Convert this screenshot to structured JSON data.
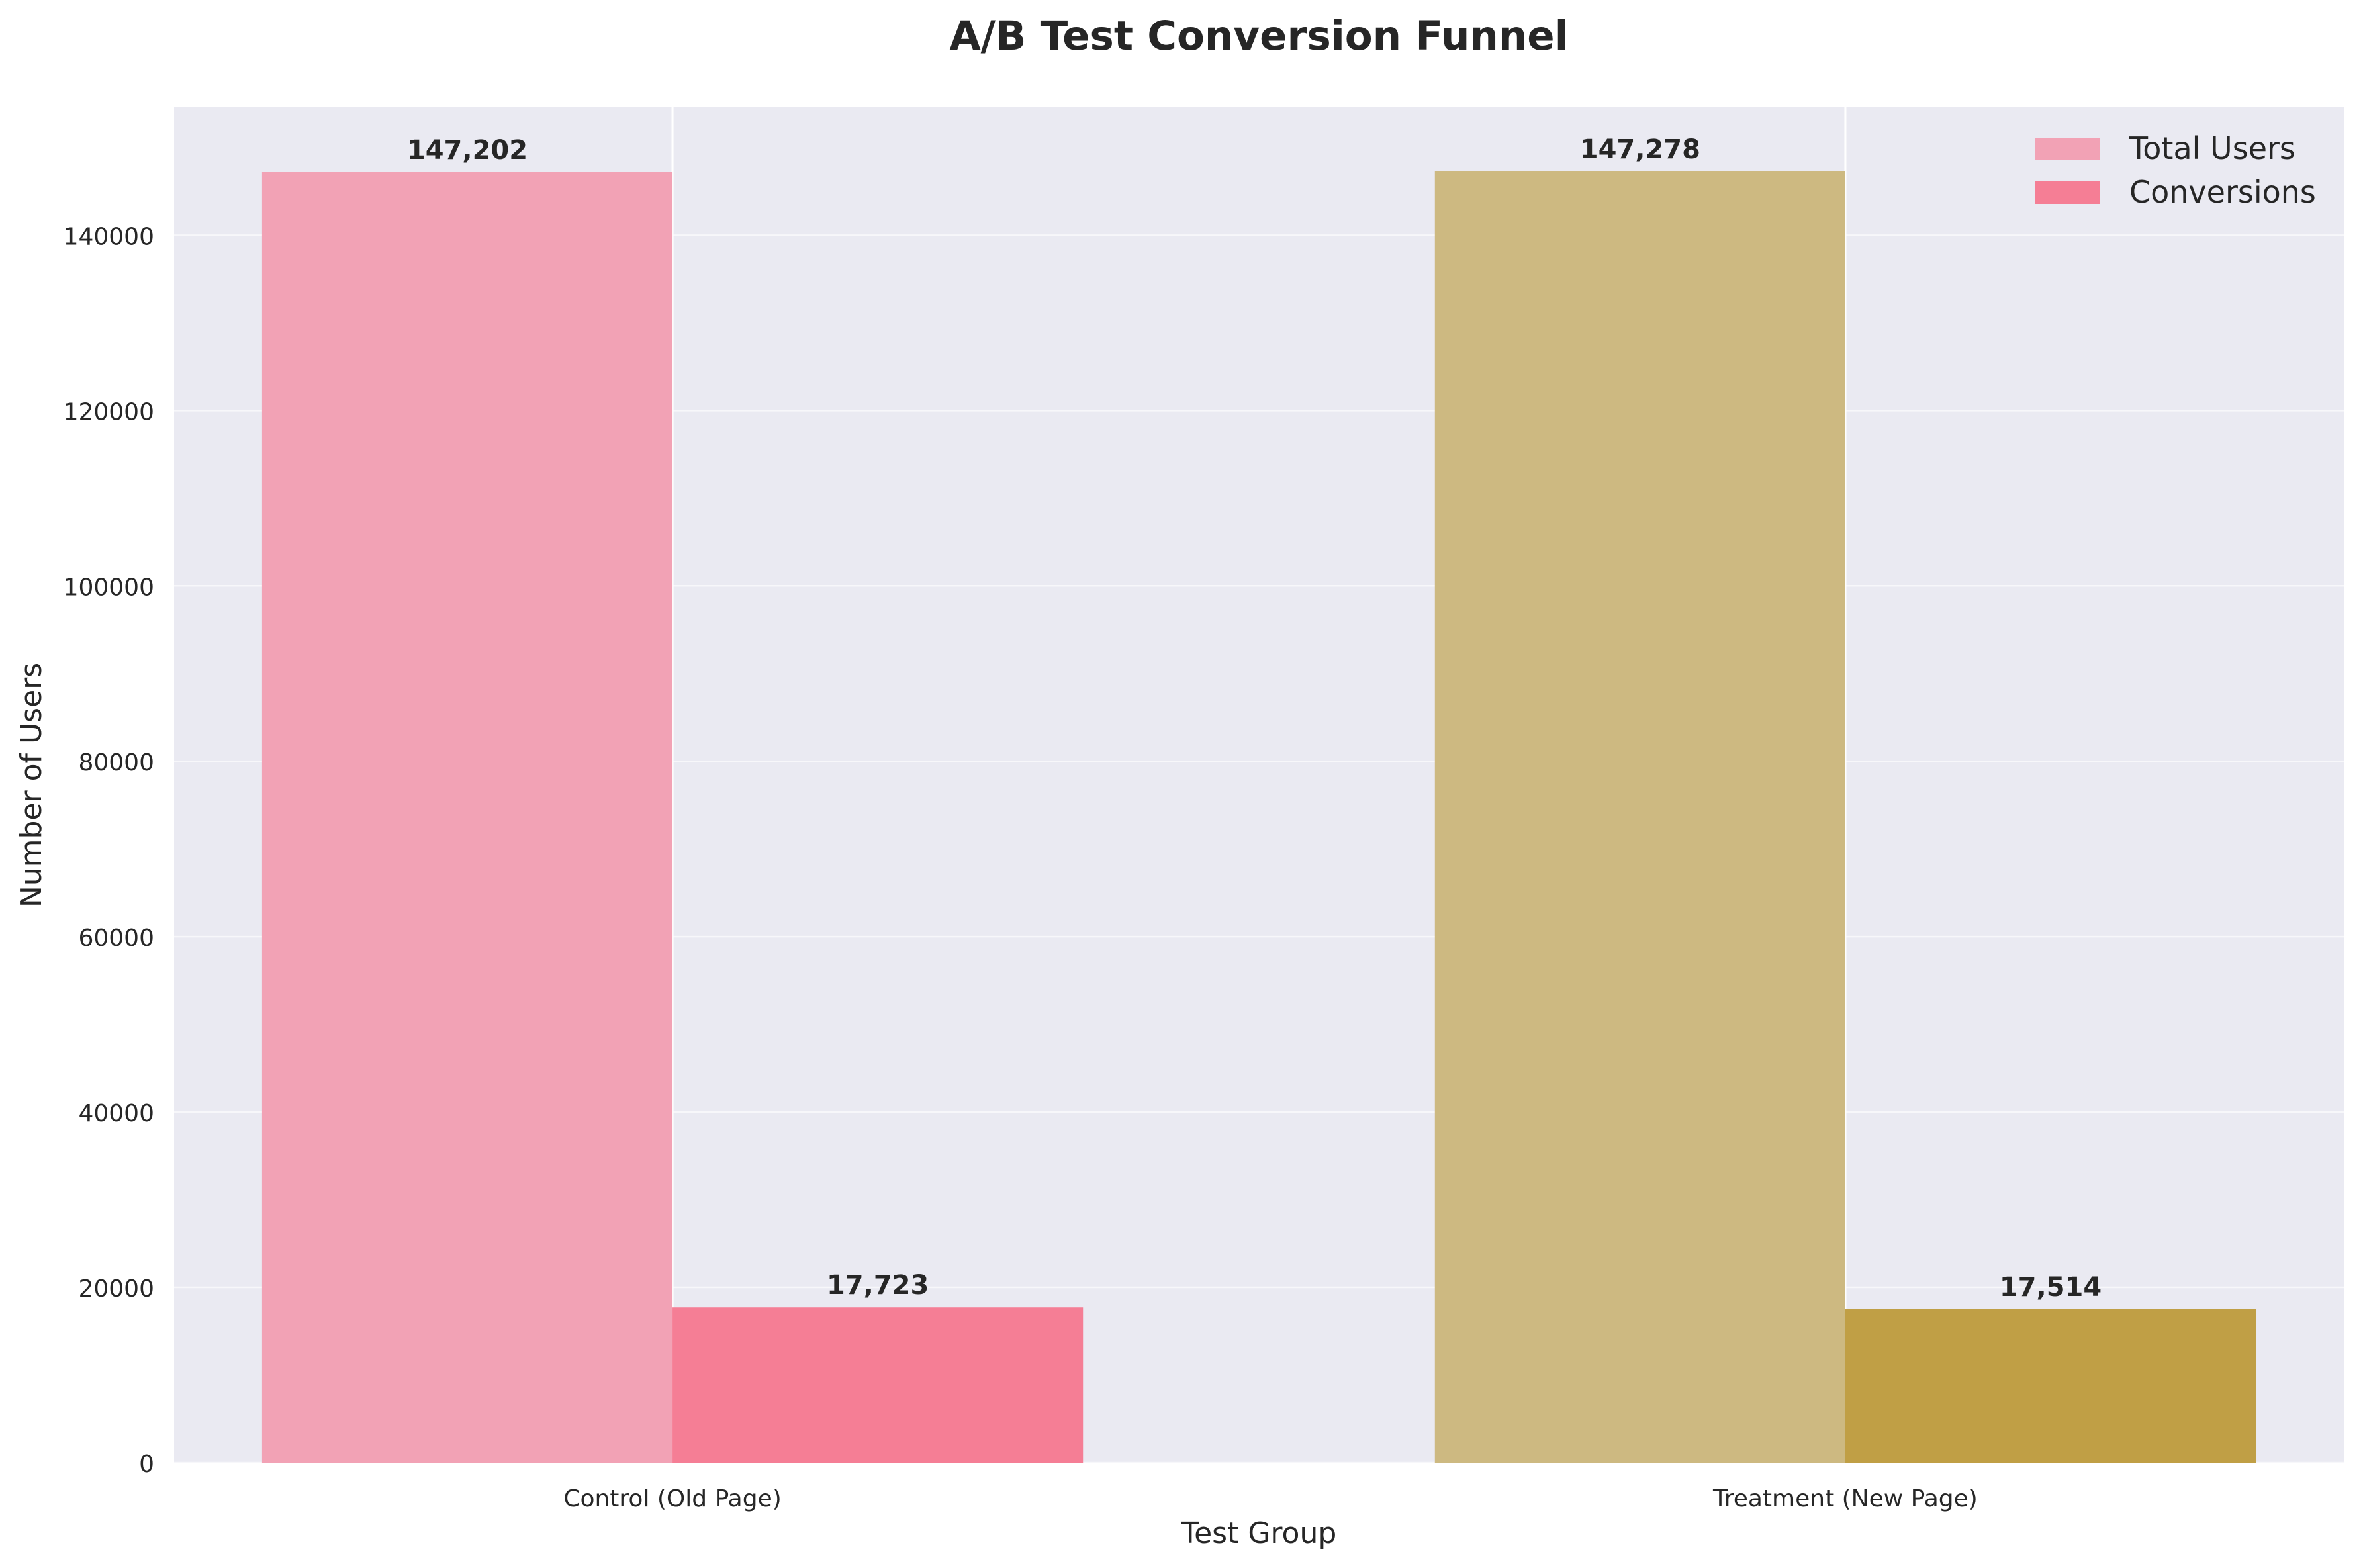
{
  "chart_data": {
    "type": "bar",
    "title": "A/B Test Conversion Funnel",
    "xlabel": "Test Group",
    "ylabel": "Number of Users",
    "categories": [
      "Control (Old Page)",
      "Treatment (New Page)"
    ],
    "series": [
      {
        "name": "Total Users",
        "values": [
          147202,
          147278
        ],
        "labels": [
          "147,202",
          "147,278"
        ],
        "colors": [
          "#f2a2b5",
          "#cdb981"
        ]
      },
      {
        "name": "Conversions",
        "values": [
          17723,
          17514
        ],
        "labels": [
          "17,723",
          "17,514"
        ],
        "colors": [
          "#f57e95",
          "#c09f45"
        ]
      }
    ],
    "ylim": [
      0,
      154600
    ],
    "yticks": [
      0,
      20000,
      40000,
      60000,
      80000,
      100000,
      120000,
      140000
    ],
    "ytick_labels": [
      "0",
      "20000",
      "40000",
      "60000",
      "80000",
      "100000",
      "120000",
      "140000"
    ],
    "grid": true,
    "legend": "top-right",
    "colors": {
      "plot_background": "#eaeaf2",
      "grid": "#ffffff"
    }
  }
}
